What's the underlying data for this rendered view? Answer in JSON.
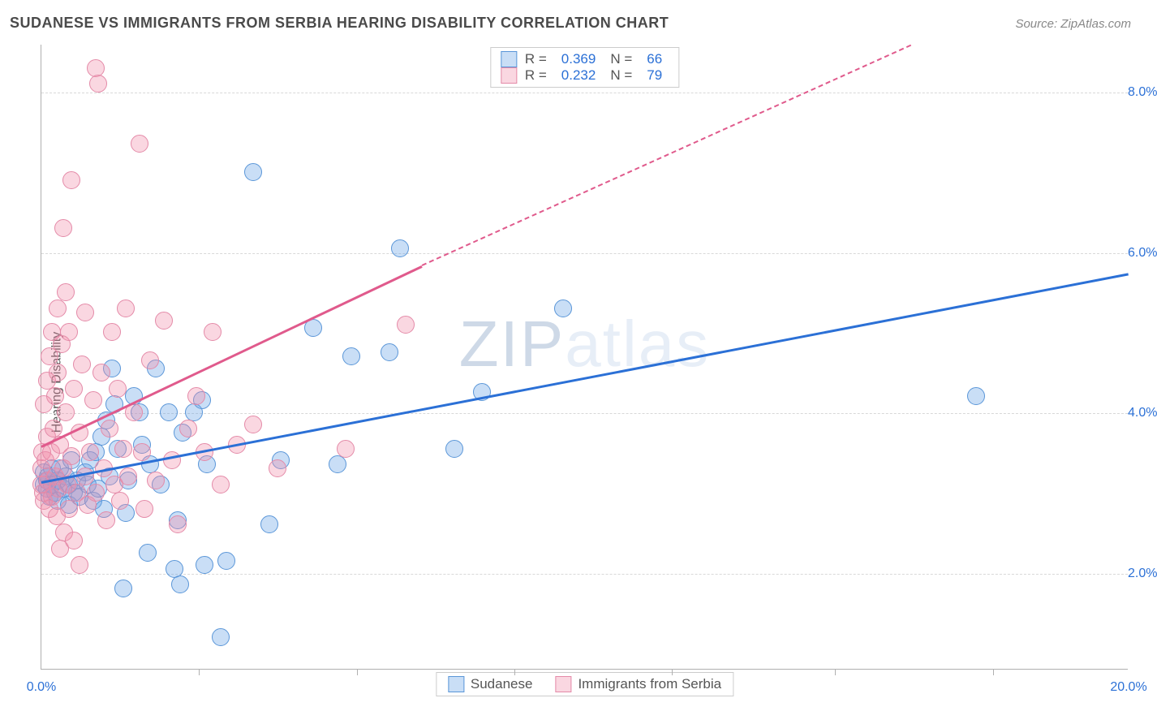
{
  "header": {
    "title": "SUDANESE VS IMMIGRANTS FROM SERBIA HEARING DISABILITY CORRELATION CHART",
    "source": "Source: ZipAtlas.com"
  },
  "ylabel": "Hearing Disability",
  "watermark": {
    "prefix": "ZIP",
    "suffix": "atlas"
  },
  "chart": {
    "type": "scatter",
    "background_color": "#ffffff",
    "grid_color": "#d8d8d8",
    "axis_color": "#b0b0b0",
    "tick_label_color": "#2b70d6",
    "ylabel_color": "#555555",
    "xlim": [
      0,
      20
    ],
    "ylim": [
      0.8,
      8.6
    ],
    "x_axis_labels": [
      {
        "value": 0,
        "label": "0.0%"
      },
      {
        "value": 20,
        "label": "20.0%"
      }
    ],
    "x_tick_positions": [
      2.9,
      5.8,
      8.7,
      11.6,
      14.6,
      17.5
    ],
    "y_gridlines": [
      2,
      4,
      6,
      8
    ],
    "y_axis_labels": [
      {
        "value": 2,
        "label": "2.0%"
      },
      {
        "value": 4,
        "label": "4.0%"
      },
      {
        "value": 6,
        "label": "6.0%"
      },
      {
        "value": 8,
        "label": "8.0%"
      }
    ],
    "series": [
      {
        "id": "sudanese",
        "label": "Sudanese",
        "fill_color": "rgba(100,160,230,0.35)",
        "stroke_color": "#5a96d8",
        "line_color": "#2b70d6",
        "marker_radius": 11,
        "stats": {
          "R_label": "R =",
          "R": "0.369",
          "N_label": "N =",
          "N": "66"
        },
        "trend": {
          "x1": 0,
          "y1": 3.15,
          "x2": 20,
          "y2": 5.75,
          "dashed": false
        },
        "points": [
          [
            0.05,
            3.25
          ],
          [
            0.05,
            3.1
          ],
          [
            0.1,
            3.05
          ],
          [
            0.1,
            3.15
          ],
          [
            0.12,
            3.2
          ],
          [
            0.15,
            2.95
          ],
          [
            0.2,
            3.1
          ],
          [
            0.2,
            3.3
          ],
          [
            0.25,
            3.0
          ],
          [
            0.3,
            3.15
          ],
          [
            0.3,
            2.9
          ],
          [
            0.35,
            3.3
          ],
          [
            0.4,
            3.05
          ],
          [
            0.45,
            3.2
          ],
          [
            0.5,
            3.1
          ],
          [
            0.5,
            2.85
          ],
          [
            0.55,
            3.4
          ],
          [
            0.6,
            3.0
          ],
          [
            0.65,
            3.15
          ],
          [
            0.7,
            2.95
          ],
          [
            0.8,
            3.25
          ],
          [
            0.85,
            3.1
          ],
          [
            0.9,
            3.4
          ],
          [
            0.95,
            2.9
          ],
          [
            1.0,
            3.5
          ],
          [
            1.05,
            3.05
          ],
          [
            1.1,
            3.7
          ],
          [
            1.15,
            2.8
          ],
          [
            1.2,
            3.9
          ],
          [
            1.25,
            3.2
          ],
          [
            1.3,
            4.55
          ],
          [
            1.35,
            4.1
          ],
          [
            1.4,
            3.55
          ],
          [
            1.5,
            1.8
          ],
          [
            1.55,
            2.75
          ],
          [
            1.6,
            3.15
          ],
          [
            1.7,
            4.2
          ],
          [
            1.8,
            4.0
          ],
          [
            1.85,
            3.6
          ],
          [
            1.95,
            2.25
          ],
          [
            2.0,
            3.35
          ],
          [
            2.1,
            4.55
          ],
          [
            2.2,
            3.1
          ],
          [
            2.35,
            4.0
          ],
          [
            2.45,
            2.05
          ],
          [
            2.5,
            2.65
          ],
          [
            2.55,
            1.85
          ],
          [
            2.6,
            3.75
          ],
          [
            2.8,
            4.0
          ],
          [
            2.95,
            4.15
          ],
          [
            3.0,
            2.1
          ],
          [
            3.05,
            3.35
          ],
          [
            3.3,
            1.2
          ],
          [
            3.4,
            2.15
          ],
          [
            3.9,
            7.0
          ],
          [
            4.2,
            2.6
          ],
          [
            4.4,
            3.4
          ],
          [
            5.0,
            5.05
          ],
          [
            5.45,
            3.35
          ],
          [
            5.7,
            4.7
          ],
          [
            6.4,
            4.75
          ],
          [
            6.6,
            6.05
          ],
          [
            7.6,
            3.55
          ],
          [
            8.1,
            4.25
          ],
          [
            9.6,
            5.3
          ],
          [
            17.2,
            4.2
          ]
        ]
      },
      {
        "id": "serbia",
        "label": "Immigrants from Serbia",
        "fill_color": "rgba(240,140,170,0.35)",
        "stroke_color": "#e48aa8",
        "line_color": "#e05a8c",
        "marker_radius": 11,
        "stats": {
          "R_label": "R =",
          "R": "0.232",
          "N_label": "N =",
          "N": "79"
        },
        "trend": {
          "x1": 0,
          "y1": 3.6,
          "x2": 7.0,
          "y2": 5.85,
          "dashed": false
        },
        "trend_extend": {
          "x1": 7.0,
          "y1": 5.85,
          "x2": 16.0,
          "y2": 8.6
        },
        "points": [
          [
            0.0,
            3.1
          ],
          [
            0.0,
            3.3
          ],
          [
            0.02,
            3.5
          ],
          [
            0.03,
            3.0
          ],
          [
            0.05,
            4.1
          ],
          [
            0.05,
            2.9
          ],
          [
            0.08,
            3.4
          ],
          [
            0.1,
            3.7
          ],
          [
            0.1,
            4.4
          ],
          [
            0.12,
            3.15
          ],
          [
            0.15,
            2.8
          ],
          [
            0.15,
            4.7
          ],
          [
            0.18,
            3.5
          ],
          [
            0.2,
            2.95
          ],
          [
            0.2,
            5.0
          ],
          [
            0.22,
            3.8
          ],
          [
            0.25,
            3.2
          ],
          [
            0.25,
            4.2
          ],
          [
            0.28,
            2.7
          ],
          [
            0.3,
            4.5
          ],
          [
            0.3,
            5.3
          ],
          [
            0.32,
            3.05
          ],
          [
            0.35,
            3.6
          ],
          [
            0.35,
            2.3
          ],
          [
            0.38,
            4.85
          ],
          [
            0.4,
            3.3
          ],
          [
            0.4,
            6.3
          ],
          [
            0.42,
            2.5
          ],
          [
            0.45,
            4.0
          ],
          [
            0.45,
            5.5
          ],
          [
            0.48,
            3.1
          ],
          [
            0.5,
            2.8
          ],
          [
            0.5,
            5.0
          ],
          [
            0.55,
            3.45
          ],
          [
            0.55,
            6.9
          ],
          [
            0.6,
            2.4
          ],
          [
            0.6,
            4.3
          ],
          [
            0.65,
            3.0
          ],
          [
            0.7,
            2.1
          ],
          [
            0.7,
            3.75
          ],
          [
            0.75,
            4.6
          ],
          [
            0.8,
            3.2
          ],
          [
            0.8,
            5.25
          ],
          [
            0.85,
            2.85
          ],
          [
            0.9,
            3.5
          ],
          [
            0.95,
            4.15
          ],
          [
            1.0,
            8.3
          ],
          [
            1.0,
            3.0
          ],
          [
            1.05,
            8.1
          ],
          [
            1.1,
            4.5
          ],
          [
            1.15,
            3.3
          ],
          [
            1.2,
            2.65
          ],
          [
            1.25,
            3.8
          ],
          [
            1.3,
            5.0
          ],
          [
            1.35,
            3.1
          ],
          [
            1.4,
            4.3
          ],
          [
            1.45,
            2.9
          ],
          [
            1.5,
            3.55
          ],
          [
            1.55,
            5.3
          ],
          [
            1.6,
            3.2
          ],
          [
            1.7,
            4.0
          ],
          [
            1.8,
            7.35
          ],
          [
            1.85,
            3.5
          ],
          [
            1.9,
            2.8
          ],
          [
            2.0,
            4.65
          ],
          [
            2.1,
            3.15
          ],
          [
            2.25,
            5.15
          ],
          [
            2.4,
            3.4
          ],
          [
            2.5,
            2.6
          ],
          [
            2.7,
            3.8
          ],
          [
            2.85,
            4.2
          ],
          [
            3.0,
            3.5
          ],
          [
            3.15,
            5.0
          ],
          [
            3.3,
            3.1
          ],
          [
            3.6,
            3.6
          ],
          [
            3.9,
            3.85
          ],
          [
            4.35,
            3.3
          ],
          [
            5.6,
            3.55
          ],
          [
            6.7,
            5.1
          ]
        ]
      }
    ]
  }
}
